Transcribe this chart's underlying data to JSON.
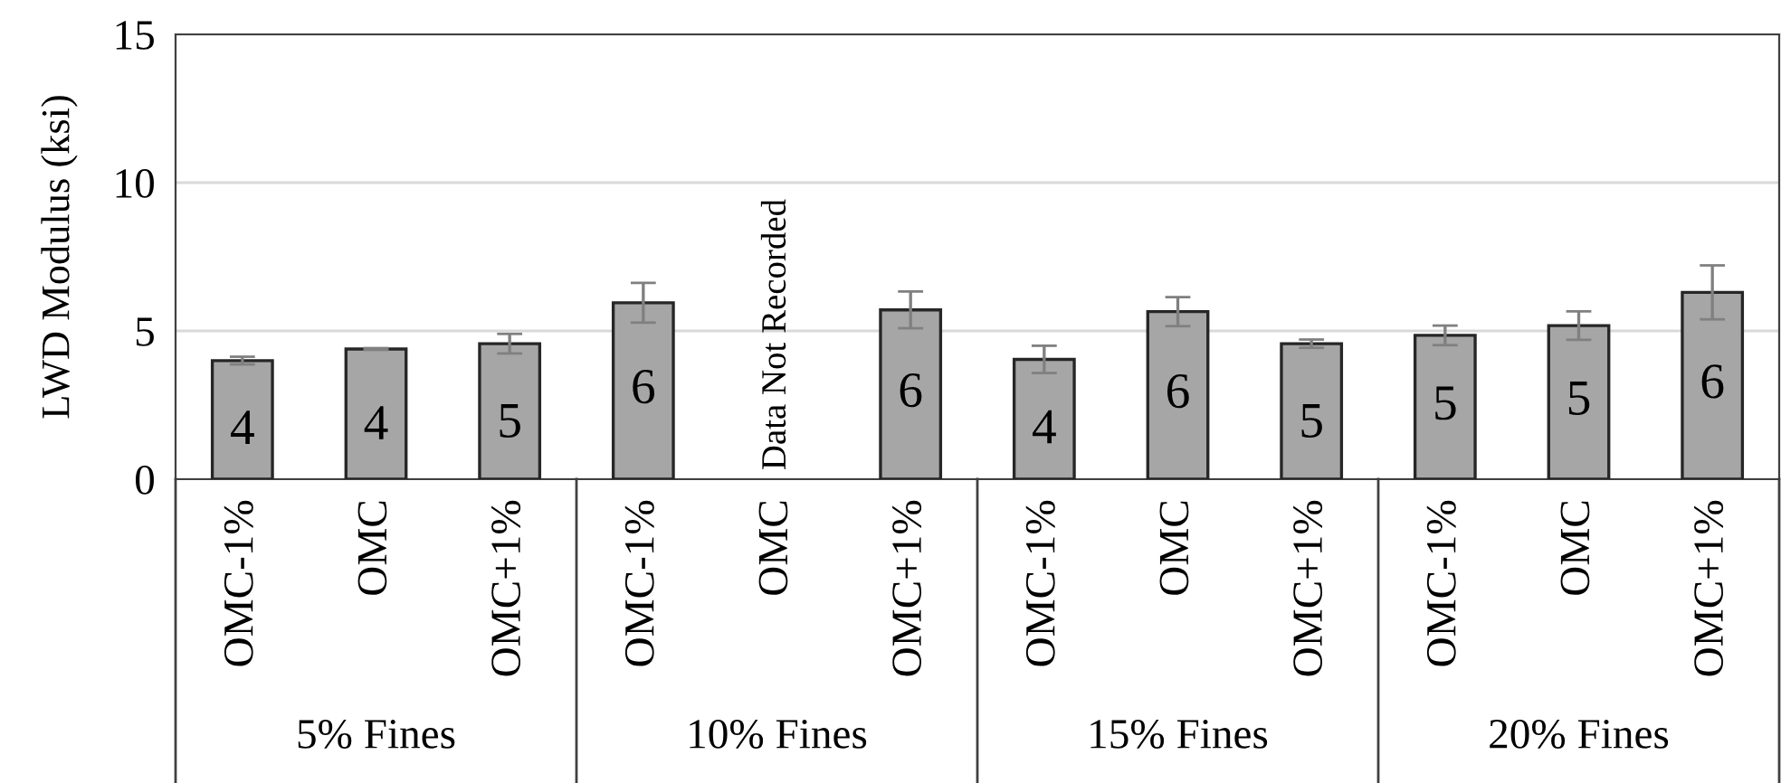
{
  "chart_data": {
    "type": "bar",
    "ylabel": "LWD Modulus (ksi)",
    "categories": [
      "OMC-1%",
      "OMC",
      "OMC+1%",
      "OMC-1%",
      "OMC",
      "OMC+1%",
      "OMC-1%",
      "OMC",
      "OMC+1%",
      "OMC-1%",
      "OMC",
      "OMC+1%"
    ],
    "values": [
      4.0,
      4.39,
      4.57,
      5.95,
      null,
      5.71,
      4.04,
      5.65,
      4.57,
      4.85,
      5.18,
      6.3
    ],
    "errors": [
      0.13,
      0.03,
      0.33,
      0.67,
      null,
      0.62,
      0.46,
      0.49,
      0.14,
      0.33,
      0.48,
      0.91
    ],
    "value_labels": [
      "4",
      "4",
      "5",
      "6",
      null,
      "6",
      "4",
      "6",
      "5",
      "5",
      "5",
      "6"
    ],
    "color": "#a6a6a6",
    "ylim": [
      0,
      15
    ],
    "yticks": [
      0,
      5,
      10,
      15
    ],
    "grid": "y",
    "legend": false,
    "annotations": [
      "Data Not Recorded",
      "5% Fines",
      "10% Fines",
      "15% Fines",
      "20% Fines"
    ]
  }
}
